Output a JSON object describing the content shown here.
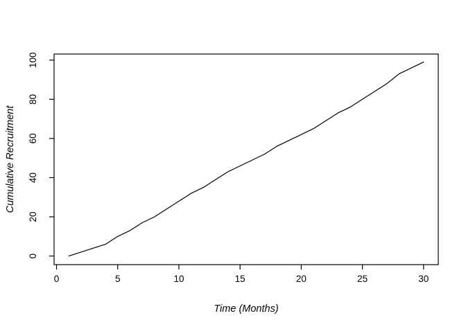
{
  "figure": {
    "background": "#ffffff",
    "line_color": "#000000",
    "axis_color": "#000000",
    "text_color": "#000000"
  },
  "chart_data": {
    "type": "line",
    "title": "",
    "xlabel": "Time (Months)",
    "ylabel": "Cumulative Recruitment",
    "series": [
      {
        "name": "cumulative-recruitment",
        "x": [
          1,
          2,
          3,
          4,
          5,
          6,
          7,
          8,
          9,
          10,
          11,
          12,
          13,
          14,
          15,
          16,
          17,
          18,
          19,
          20,
          21,
          22,
          23,
          24,
          25,
          26,
          27,
          28,
          29,
          30
        ],
        "values": [
          0,
          2,
          4,
          6,
          10,
          13,
          17,
          20,
          24,
          28,
          32,
          35,
          39,
          43,
          46,
          49,
          52,
          56,
          59,
          62,
          65,
          69,
          73,
          76,
          80,
          84,
          88,
          93,
          96,
          99
        ]
      }
    ],
    "xticks": [
      0,
      5,
      10,
      15,
      20,
      25,
      30
    ],
    "yticks": [
      0,
      20,
      40,
      60,
      80,
      100
    ],
    "xlim": [
      -0.2,
      31.2
    ],
    "ylim": [
      -4.4,
      103.1
    ],
    "grid": false,
    "legend_position": "none",
    "line_style": "solid",
    "marker": "none",
    "box": "full"
  }
}
